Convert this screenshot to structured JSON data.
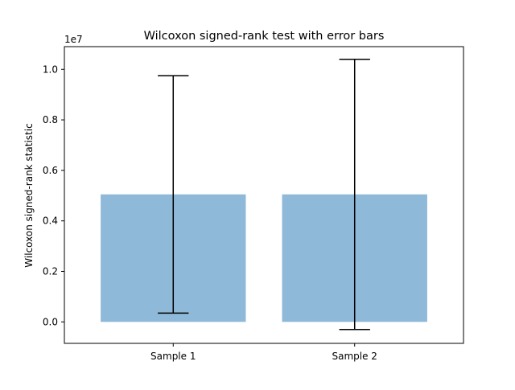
{
  "chart_data": {
    "type": "bar",
    "title": "Wilcoxon signed-rank test with error bars",
    "xlabel": "",
    "ylabel": "Wilcoxon signed-rank statistic",
    "y_offset_label": "1e7",
    "y_scale_factor": 10000000,
    "categories": [
      "Sample 1",
      "Sample 2"
    ],
    "values": [
      5050000,
      5050000
    ],
    "error_low": [
      4700000,
      5350000
    ],
    "error_high": [
      4700000,
      5350000
    ],
    "ylim": [
      -850000,
      10900000
    ],
    "yticks": [
      0,
      2000000,
      4000000,
      6000000,
      8000000,
      10000000
    ],
    "ytick_labels": [
      "0.0",
      "0.2",
      "0.4",
      "0.6",
      "0.8",
      "1.0"
    ],
    "bar_color": "#8fb9d8",
    "error_color": "#000000",
    "grid": false,
    "legend": "none"
  }
}
